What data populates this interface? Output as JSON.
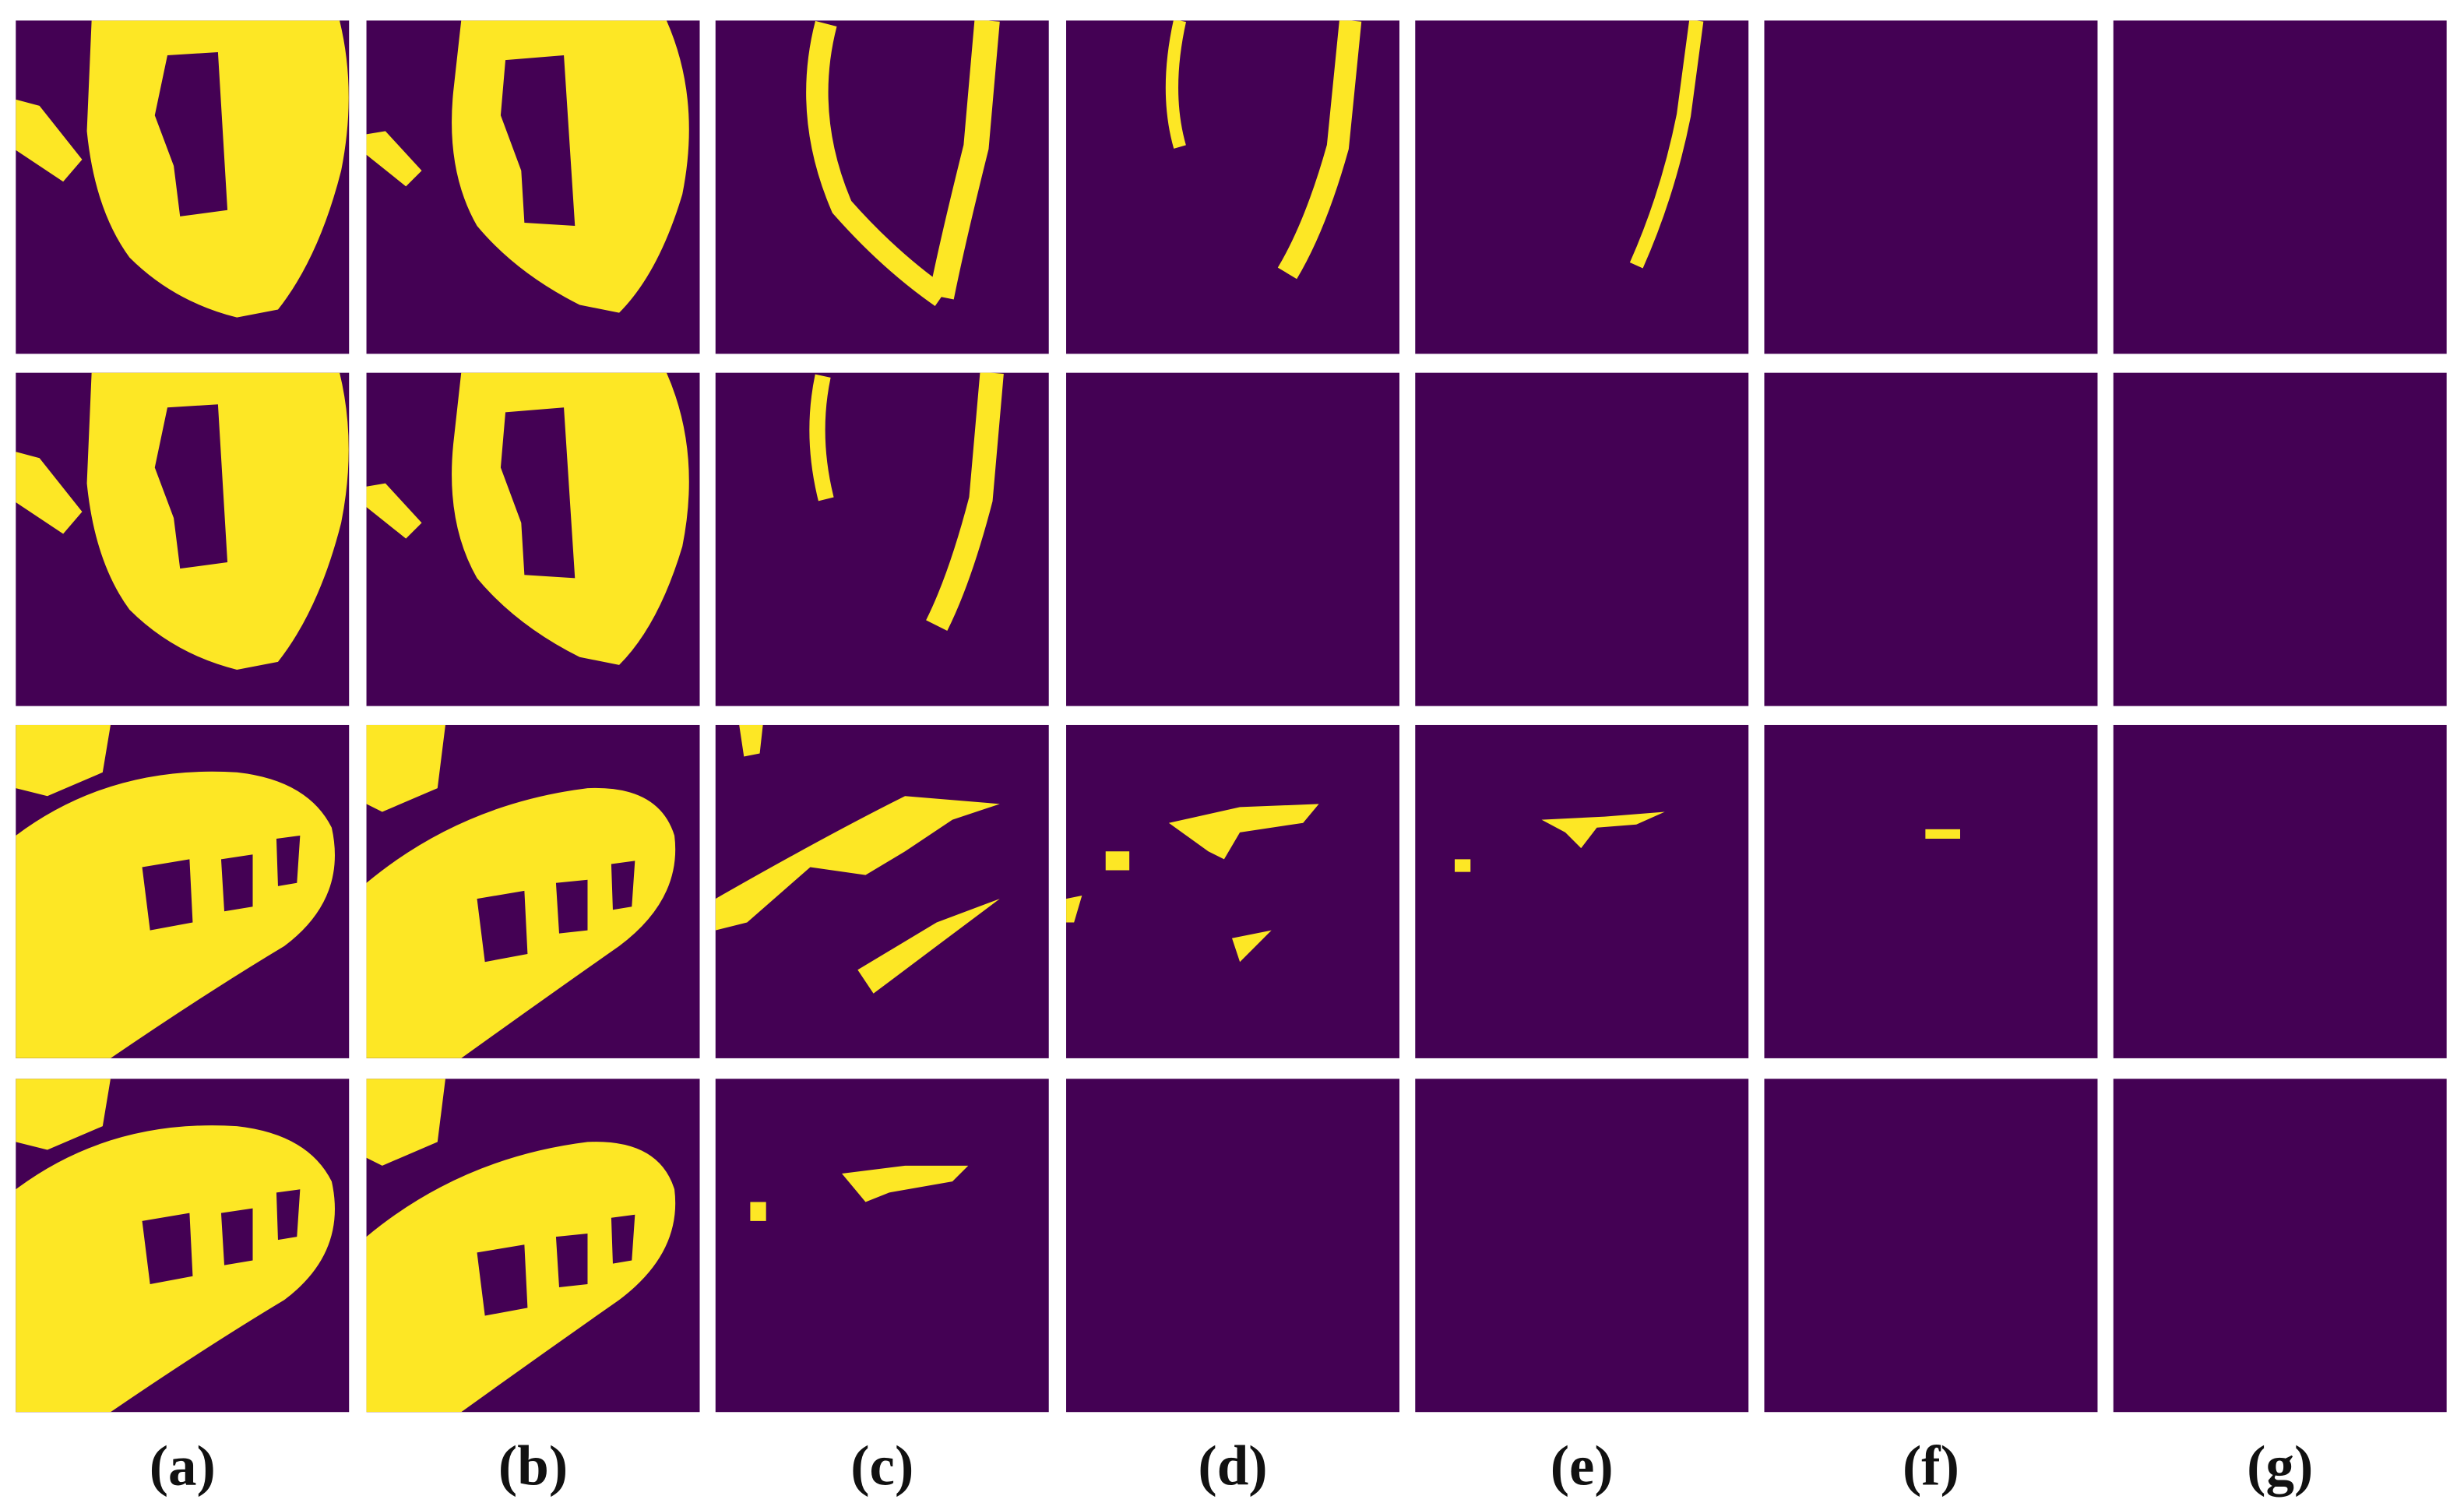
{
  "panel_labels": [
    "(a)",
    "(b)",
    "(c)",
    "(d)",
    "(e)",
    "(f)",
    "(g)"
  ]
}
